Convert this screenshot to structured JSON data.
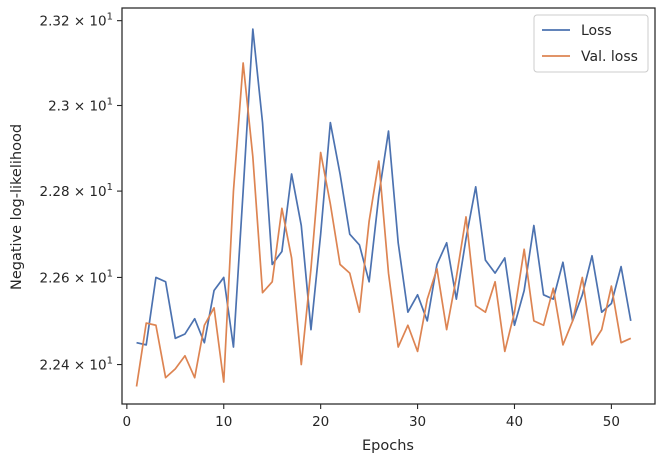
{
  "chart_data": {
    "type": "line",
    "xlabel": "Epochs",
    "ylabel": "Negative log-likelihood",
    "y_scale": "log",
    "xlim": [
      -0.5,
      54.5
    ],
    "ylim": [
      22.31,
      23.23
    ],
    "grid": false,
    "legend_position": "top-right",
    "x_ticks": [
      0,
      10,
      20,
      30,
      40,
      50
    ],
    "y_ticks": [
      {
        "value": 22.4,
        "mantissa": "2.24",
        "exponent": "1"
      },
      {
        "value": 22.6,
        "mantissa": "2.26",
        "exponent": "1"
      },
      {
        "value": 22.8,
        "mantissa": "2.28",
        "exponent": "1"
      },
      {
        "value": 23.0,
        "mantissa": "2.3",
        "exponent": "1"
      },
      {
        "value": 23.2,
        "mantissa": "2.32",
        "exponent": "1"
      }
    ],
    "x": [
      1,
      2,
      3,
      4,
      5,
      6,
      7,
      8,
      9,
      10,
      11,
      12,
      13,
      14,
      15,
      16,
      17,
      18,
      19,
      20,
      21,
      22,
      23,
      24,
      25,
      26,
      27,
      28,
      29,
      30,
      31,
      32,
      33,
      34,
      35,
      36,
      37,
      38,
      39,
      40,
      41,
      42,
      43,
      44,
      45,
      46,
      47,
      48,
      49,
      50,
      51,
      52
    ],
    "series": [
      {
        "name": "Loss",
        "color": "#4c72b0",
        "values": [
          22.45,
          22.445,
          22.6,
          22.59,
          22.46,
          22.47,
          22.505,
          22.45,
          22.57,
          22.6,
          22.44,
          22.8,
          23.18,
          22.96,
          22.63,
          22.66,
          22.84,
          22.72,
          22.48,
          22.7,
          22.96,
          22.84,
          22.7,
          22.675,
          22.59,
          22.79,
          22.94,
          22.68,
          22.52,
          22.56,
          22.5,
          22.63,
          22.68,
          22.55,
          22.69,
          22.81,
          22.64,
          22.61,
          22.645,
          22.49,
          22.57,
          22.72,
          22.56,
          22.55,
          22.635,
          22.5,
          22.56,
          22.65,
          22.52,
          22.54,
          22.625,
          22.5
        ]
      },
      {
        "name": "Val. loss",
        "color": "#dd8452",
        "values": [
          22.35,
          22.495,
          22.49,
          22.37,
          22.39,
          22.42,
          22.37,
          22.49,
          22.53,
          22.36,
          22.8,
          23.1,
          22.88,
          22.565,
          22.59,
          22.76,
          22.645,
          22.4,
          22.62,
          22.89,
          22.77,
          22.63,
          22.61,
          22.52,
          22.73,
          22.87,
          22.61,
          22.44,
          22.49,
          22.43,
          22.55,
          22.62,
          22.48,
          22.6,
          22.74,
          22.535,
          22.52,
          22.59,
          22.43,
          22.52,
          22.665,
          22.5,
          22.49,
          22.575,
          22.445,
          22.5,
          22.6,
          22.445,
          22.48,
          22.58,
          22.45,
          22.46
        ]
      }
    ]
  }
}
